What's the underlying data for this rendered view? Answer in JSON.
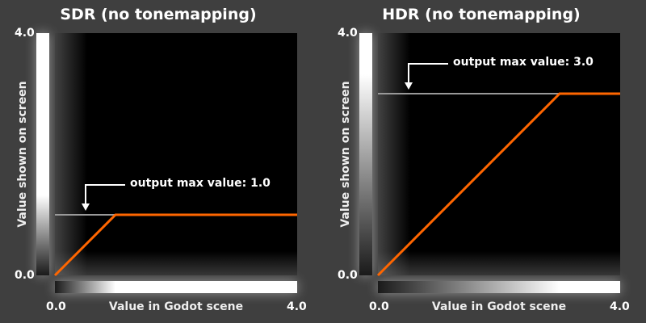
{
  "colors": {
    "background": "#3f3f3f",
    "plot": "#000000",
    "curve": "#ff6600",
    "max_line": "#999999"
  },
  "chart_data": [
    {
      "type": "line",
      "title": "SDR (no tonemapping)",
      "xlabel": "Value in Godot scene",
      "ylabel": "Value shown on screen",
      "xlim": [
        0,
        4
      ],
      "ylim": [
        0,
        4
      ],
      "x_ticks": [
        "0.0",
        "4.0"
      ],
      "y_ticks": [
        "0.0",
        "4.0"
      ],
      "x": [
        0,
        1,
        4
      ],
      "y": [
        0,
        1,
        1
      ],
      "max_value": 1.0,
      "annotation": "output max value: 1.0"
    },
    {
      "type": "line",
      "title": "HDR (no tonemapping)",
      "xlabel": "Value in Godot scene",
      "ylabel": "Value shown on screen",
      "xlim": [
        0,
        4
      ],
      "ylim": [
        0,
        4
      ],
      "x_ticks": [
        "0.0",
        "4.0"
      ],
      "y_ticks": [
        "0.0",
        "4.0"
      ],
      "x": [
        0,
        3,
        4
      ],
      "y": [
        0,
        3,
        3
      ],
      "max_value": 3.0,
      "annotation": "output max value: 3.0"
    }
  ]
}
